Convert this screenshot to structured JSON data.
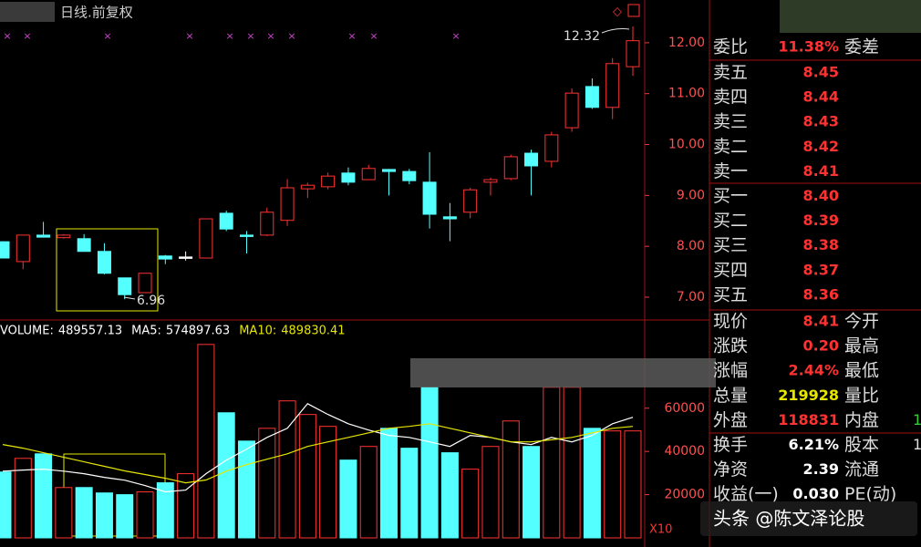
{
  "chart_data": [
    {
      "type": "candlestick",
      "title": "日线.前复权",
      "open": [
        8.09,
        7.7,
        8.22,
        8.17,
        8.15,
        7.9,
        7.38,
        7.09,
        7.81,
        7.79,
        7.77,
        8.65,
        8.22,
        8.22,
        8.51,
        9.13,
        9.17,
        9.44,
        9.31,
        9.51,
        9.47,
        9.26,
        8.58,
        8.67,
        9.26,
        9.33,
        9.83,
        9.67,
        10.33,
        11.14,
        10.73,
        11.53
      ],
      "close": [
        7.77,
        8.22,
        8.18,
        8.22,
        7.9,
        7.47,
        7.05,
        7.47,
        7.75,
        7.79,
        8.54,
        8.34,
        8.2,
        8.67,
        9.15,
        9.2,
        9.38,
        9.26,
        9.53,
        9.47,
        9.29,
        8.63,
        8.54,
        9.11,
        9.31,
        9.76,
        9.58,
        10.19,
        11.01,
        10.73,
        11.59,
        12.04
      ],
      "high": [
        8.1,
        8.22,
        8.48,
        8.24,
        8.24,
        8.06,
        7.38,
        7.47,
        7.83,
        7.9,
        8.54,
        8.7,
        8.3,
        8.76,
        9.32,
        9.25,
        9.45,
        9.55,
        9.6,
        9.52,
        9.52,
        9.85,
        8.85,
        9.15,
        9.35,
        9.8,
        9.9,
        10.25,
        11.1,
        11.3,
        11.7,
        12.32
      ],
      "low": [
        7.77,
        7.55,
        8.18,
        8.15,
        7.9,
        7.45,
        6.96,
        7.09,
        7.65,
        7.72,
        7.77,
        8.3,
        7.86,
        8.2,
        8.4,
        8.95,
        9.12,
        9.2,
        9.3,
        9.0,
        9.22,
        8.35,
        8.1,
        8.55,
        9.0,
        9.3,
        9.0,
        9.55,
        10.25,
        10.7,
        10.5,
        11.35
      ],
      "up_color": "#ff3232",
      "down_color": "#54ffff",
      "ylim": [
        6.57,
        12.84
      ],
      "yticks": [
        {
          "value": 7,
          "label": "7.00"
        },
        {
          "value": 8,
          "label": "8.00"
        },
        {
          "value": 9,
          "label": "9.00"
        },
        {
          "value": 10,
          "label": "10.00"
        },
        {
          "value": 11,
          "label": "11.00"
        },
        {
          "value": 12,
          "label": "12.00"
        }
      ],
      "annotations": [
        "12.32",
        "6.96"
      ]
    },
    {
      "type": "bar",
      "series": [
        {
          "name": "VOLUME:",
          "legend_value": "489557.13",
          "color": "#ffffff",
          "values": [
            30500,
            36800,
            38900,
            23300,
            23300,
            20800,
            20000,
            21300,
            25500,
            29700,
            89500,
            57900,
            44800,
            50700,
            63400,
            57100,
            51600,
            36000,
            42300,
            50700,
            41500,
            69700,
            39400,
            31800,
            42300,
            54100,
            42300,
            69700,
            69700,
            50700,
            49500,
            49500
          ]
        },
        {
          "name": "MA5:",
          "legend_value": "574897.63",
          "color": "#ffffff",
          "values": [
            30900,
            31400,
            31800,
            30900,
            29700,
            28000,
            26700,
            24200,
            21300,
            22100,
            29700,
            36000,
            41100,
            46500,
            50700,
            62100,
            57100,
            52800,
            49900,
            47400,
            46500,
            44400,
            42300,
            47400,
            46500,
            44400,
            43200,
            46500,
            44400,
            47400,
            52800,
            55800
          ]
        },
        {
          "name": "MA10:",
          "legend_value": "489830.41",
          "color": "#e6e600",
          "values": [
            43200,
            41500,
            39400,
            37300,
            35200,
            33100,
            31000,
            29300,
            27600,
            25500,
            26800,
            30900,
            33900,
            36400,
            38900,
            42300,
            44400,
            46500,
            48600,
            50700,
            51600,
            52800,
            50700,
            48600,
            46500,
            44400,
            44400,
            45400,
            46500,
            48600,
            50700,
            51600
          ]
        }
      ],
      "ylim": [
        0,
        100400
      ],
      "yticks": [
        20000,
        40000,
        60000
      ],
      "scale_label": "X10"
    }
  ],
  "panel": {
    "rows": [
      {
        "label": "委比",
        "value": "11.38%",
        "label2": "委差"
      },
      {
        "label": "卖五",
        "value": "8.45"
      },
      {
        "label": "卖四",
        "value": "8.44"
      },
      {
        "label": "卖三",
        "value": "8.43"
      },
      {
        "label": "卖二",
        "value": "8.42"
      },
      {
        "label": "卖一",
        "value": "8.41"
      },
      {
        "label": "买一",
        "value": "8.40"
      },
      {
        "label": "买二",
        "value": "8.39"
      },
      {
        "label": "买三",
        "value": "8.38"
      },
      {
        "label": "买四",
        "value": "8.37"
      },
      {
        "label": "买五",
        "value": "8.36"
      },
      {
        "label": "现价",
        "value": "8.41",
        "label2": "今开"
      },
      {
        "label": "涨跌",
        "value": "0.20",
        "label2": "最高"
      },
      {
        "label": "涨幅",
        "value": "2.44%",
        "label2": "最低"
      },
      {
        "label": "总量",
        "value": "219928",
        "label2": "量比"
      },
      {
        "label": "外盘",
        "value": "118831",
        "label2": "内盘",
        "extra": "1"
      },
      {
        "label": "换手",
        "value": "6.21%",
        "label2": "股本",
        "extra": "1"
      },
      {
        "label": "净资",
        "value": "2.39",
        "label2": "流通"
      },
      {
        "label": "收益(一)",
        "value": "0.030",
        "label2": "PE(动)"
      }
    ]
  },
  "watermark": "头条 @陈文泽论股"
}
